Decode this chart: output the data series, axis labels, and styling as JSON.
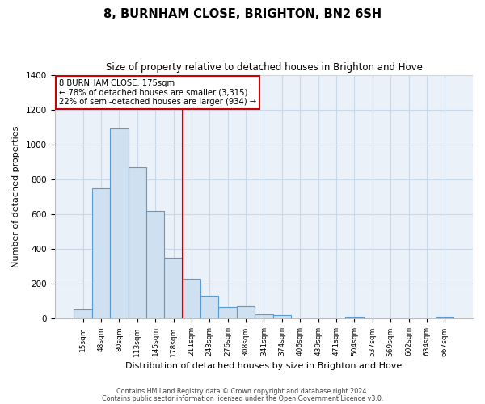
{
  "title": "8, BURNHAM CLOSE, BRIGHTON, BN2 6SH",
  "subtitle": "Size of property relative to detached houses in Brighton and Hove",
  "xlabel": "Distribution of detached houses by size in Brighton and Hove",
  "ylabel": "Number of detached properties",
  "bar_labels": [
    "15sqm",
    "48sqm",
    "80sqm",
    "113sqm",
    "145sqm",
    "178sqm",
    "211sqm",
    "243sqm",
    "276sqm",
    "308sqm",
    "341sqm",
    "374sqm",
    "406sqm",
    "439sqm",
    "471sqm",
    "504sqm",
    "537sqm",
    "569sqm",
    "602sqm",
    "634sqm",
    "667sqm"
  ],
  "bar_values": [
    55,
    750,
    1095,
    870,
    620,
    350,
    230,
    130,
    65,
    70,
    25,
    20,
    0,
    0,
    0,
    12,
    0,
    0,
    0,
    0,
    12
  ],
  "bar_color": "#cfe0f0",
  "bar_edge_color": "#5b9bd5",
  "reference_line_color": "#cc0000",
  "reference_line_index": 5,
  "box_text_line1": "8 BURNHAM CLOSE: 175sqm",
  "box_text_line2": "← 78% of detached houses are smaller (3,315)",
  "box_text_line3": "22% of semi-detached houses are larger (934) →",
  "box_color": "white",
  "box_edge_color": "#cc0000",
  "ylim": [
    0,
    1400
  ],
  "yticks": [
    0,
    200,
    400,
    600,
    800,
    1000,
    1200,
    1400
  ],
  "footer_line1": "Contains HM Land Registry data © Crown copyright and database right 2024.",
  "footer_line2": "Contains public sector information licensed under the Open Government Licence v3.0.",
  "background_color": "white",
  "plot_bg_color": "#eaf1f8",
  "grid_color": "#c8d8e8"
}
